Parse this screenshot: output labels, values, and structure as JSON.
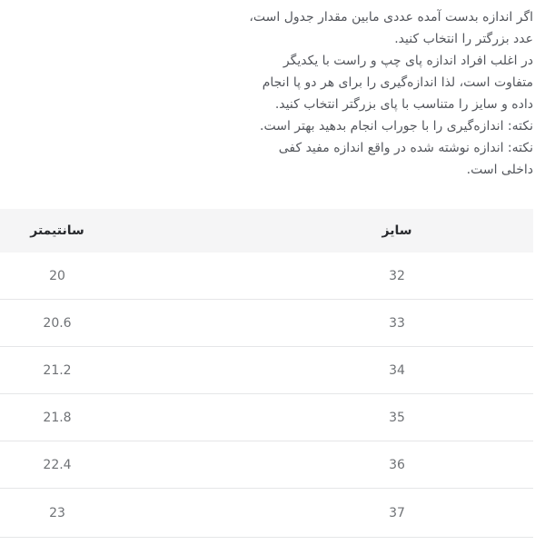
{
  "intro": {
    "lines": [
      "اگر اندازه بدست آمده عددی مابین مقدار جدول است،",
      "عدد بزرگتر را انتخاب کنید.",
      "در اغلب افراد اندازه پای چپ و راست با یکدیگر",
      "متفاوت است، لذا اندازه‌گیری را برای هر دو پا انجام",
      "داده و سایز را متناسب با پای بزرگتر انتخاب کنید.",
      "نکته: اندازه‌گیری را با جوراب انجام بدهید بهتر است.",
      "نکته: اندازه نوشته شده در واقع اندازه مفید کفی",
      "داخلی است."
    ]
  },
  "table": {
    "headers": {
      "size": "سایز",
      "cm": "سانتیمتر"
    },
    "rows": [
      {
        "size": "32",
        "cm": "20"
      },
      {
        "size": "33",
        "cm": "20.6"
      },
      {
        "size": "34",
        "cm": "21.2"
      },
      {
        "size": "35",
        "cm": "21.8"
      },
      {
        "size": "36",
        "cm": "22.4"
      },
      {
        "size": "37",
        "cm": "23"
      }
    ]
  },
  "chart_data": {
    "type": "table",
    "columns": [
      "سایز",
      "سانتیمتر"
    ],
    "rows": [
      [
        32,
        20
      ],
      [
        33,
        20.6
      ],
      [
        34,
        21.2
      ],
      [
        35,
        21.8
      ],
      [
        36,
        22.4
      ],
      [
        37,
        23
      ]
    ]
  },
  "colors": {
    "page_bg": "#ffffff",
    "intro_text": "#54575d",
    "header_bg": "#f5f5f6",
    "header_text": "#2a2c30",
    "cell_text": "#6f7276",
    "divider": "#e5e6e8"
  }
}
